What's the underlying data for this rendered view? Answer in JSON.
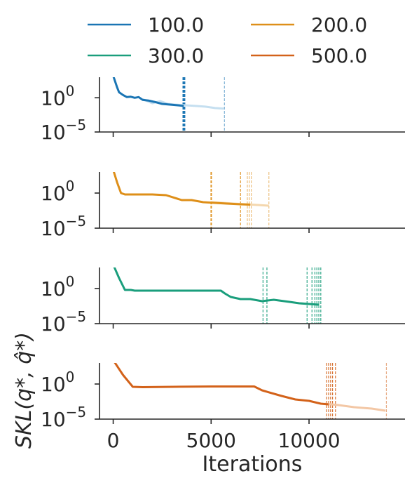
{
  "legend": {
    "placement": "top",
    "items": [
      {
        "label": "100.0",
        "color": "#1a75b4"
      },
      {
        "label": "200.0",
        "color": "#de8f19"
      },
      {
        "label": "300.0",
        "color": "#1a9e7c"
      },
      {
        "label": "500.0",
        "color": "#d3621a"
      }
    ]
  },
  "xlabel": "Iterations",
  "ylabel": "SKL(q*, q̂*)",
  "chart_data": {
    "type": "line",
    "log_y": true,
    "grid": false,
    "xlim": [
      -700,
      14900
    ],
    "ylim": [
      -5,
      3
    ],
    "x_ticks": [
      {
        "value": 0,
        "label": "0"
      },
      {
        "value": 5000,
        "label": "5000"
      },
      {
        "value": 10000,
        "label": "10000"
      }
    ],
    "y_ticks": [
      {
        "value": 0,
        "base": "10",
        "exp": "0"
      },
      {
        "value": -5,
        "base": "10",
        "exp": "−5"
      }
    ],
    "panels": [
      {
        "series": "100.0",
        "color": "#1a75b4",
        "light": "#c5dff0",
        "mean_line": [
          [
            0,
            3.2
          ],
          [
            200,
            1.5
          ],
          [
            300,
            0.8
          ],
          [
            500,
            0.4
          ],
          [
            700,
            0.1
          ],
          [
            900,
            0.15
          ],
          [
            1100,
            0.0
          ],
          [
            1300,
            0.1
          ],
          [
            1500,
            -0.3
          ],
          [
            1800,
            -0.4
          ],
          [
            2100,
            -0.6
          ],
          [
            2500,
            -0.9
          ],
          [
            2900,
            -1.0
          ],
          [
            3300,
            -1.1
          ],
          [
            3600,
            -1.2
          ]
        ],
        "tail_line": [
          [
            1500,
            -0.2
          ],
          [
            2000,
            -0.8
          ],
          [
            2400,
            -0.5
          ],
          [
            2800,
            -0.9
          ],
          [
            3200,
            -1.0
          ],
          [
            3700,
            -1.1
          ],
          [
            4200,
            -1.2
          ],
          [
            4700,
            -1.3
          ],
          [
            5200,
            -1.5
          ],
          [
            5650,
            -1.6
          ]
        ],
        "vlines": [
          3560,
          3580,
          3600,
          3620,
          3640,
          3660
        ],
        "vlines_light": [
          5680
        ]
      },
      {
        "series": "200.0",
        "color": "#de8f19",
        "light": "#f4d7ae",
        "mean_line": [
          [
            0,
            3.3
          ],
          [
            200,
            1.5
          ],
          [
            400,
            0.0
          ],
          [
            600,
            -0.2
          ],
          [
            1200,
            -0.2
          ],
          [
            2000,
            -0.2
          ],
          [
            2700,
            -0.3
          ],
          [
            3500,
            -1.0
          ],
          [
            4000,
            -1.0
          ],
          [
            4600,
            -1.3
          ],
          [
            5200,
            -1.4
          ],
          [
            5800,
            -1.5
          ],
          [
            6500,
            -1.6
          ],
          [
            7000,
            -1.65
          ]
        ],
        "tail_line": [
          [
            5000,
            -1.3
          ],
          [
            5600,
            -1.4
          ],
          [
            6200,
            -1.5
          ],
          [
            6800,
            -1.6
          ],
          [
            7400,
            -1.7
          ],
          [
            7950,
            -1.8
          ]
        ],
        "vlines": [
          4990,
          5020,
          6500
        ],
        "vlines_light": [
          6850,
          6950,
          7050,
          7950
        ]
      },
      {
        "series": "300.0",
        "color": "#1a9e7c",
        "light": "#b7e0d4",
        "mean_line": [
          [
            0,
            3.4
          ],
          [
            300,
            1.5
          ],
          [
            600,
            -0.2
          ],
          [
            900,
            -0.2
          ],
          [
            1100,
            -0.3
          ],
          [
            2000,
            -0.3
          ],
          [
            3500,
            -0.3
          ],
          [
            5500,
            -0.3
          ],
          [
            5700,
            -0.7
          ],
          [
            6000,
            -1.2
          ],
          [
            6500,
            -1.5
          ],
          [
            7000,
            -1.5
          ],
          [
            7600,
            -1.8
          ],
          [
            8200,
            -1.6
          ],
          [
            9000,
            -1.9
          ],
          [
            9500,
            -2.1
          ],
          [
            10000,
            -2.2
          ],
          [
            10500,
            -2.3
          ]
        ],
        "tail_line": [
          [
            9500,
            -2.1
          ],
          [
            10000,
            -2.2
          ],
          [
            10550,
            -2.3
          ]
        ],
        "vlines": [
          7650,
          7850,
          9900,
          10150,
          10300,
          10400,
          10500,
          10600
        ],
        "vlines_light": []
      },
      {
        "series": "500.0",
        "color": "#d3621a",
        "light": "#f3c7a5",
        "mean_line": [
          [
            0,
            3.4
          ],
          [
            500,
            1.3
          ],
          [
            1000,
            -0.4
          ],
          [
            1500,
            -0.45
          ],
          [
            3000,
            -0.4
          ],
          [
            5000,
            -0.35
          ],
          [
            7200,
            -0.35
          ],
          [
            7600,
            -0.9
          ],
          [
            8600,
            -1.7
          ],
          [
            9300,
            -2.2
          ],
          [
            10000,
            -2.4
          ],
          [
            10600,
            -2.8
          ],
          [
            11000,
            -2.9
          ]
        ],
        "tail_line": [
          [
            10800,
            -2.8
          ],
          [
            11500,
            -3.0
          ],
          [
            12300,
            -3.3
          ],
          [
            13200,
            -3.5
          ],
          [
            13900,
            -3.8
          ]
        ],
        "vlines": [
          10900,
          11000,
          11100,
          11200,
          11350
        ],
        "vlines_light": [
          13950
        ]
      }
    ]
  }
}
